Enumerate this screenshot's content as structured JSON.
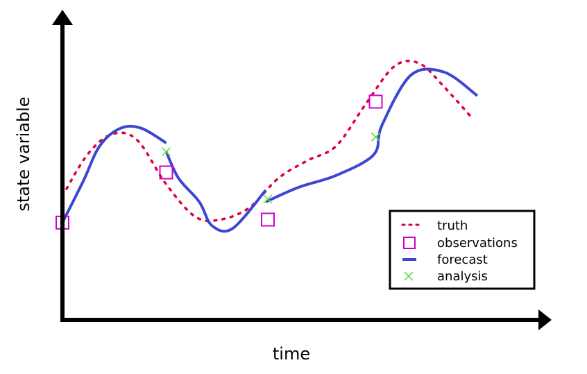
{
  "labels": {
    "y_axis": "state variable",
    "x_axis": "time"
  },
  "legend": {
    "position": "bottom-right",
    "entries": [
      {
        "key": "truth",
        "label": "truth"
      },
      {
        "key": "observations",
        "label": "observations"
      },
      {
        "key": "forecast",
        "label": "forecast"
      },
      {
        "key": "analysis",
        "label": "analysis"
      }
    ]
  },
  "colors": {
    "truth": "#e0003c",
    "observations": "#cc00cc",
    "forecast": "#3c46d2",
    "analysis": "#66dd44",
    "axes": "#000000"
  },
  "chart_data": {
    "type": "line",
    "xlim": [
      0,
      10
    ],
    "ylim": [
      0,
      10
    ],
    "axes_ticks": false,
    "series": [
      {
        "key": "truth",
        "style": "dotted",
        "points": [
          [
            0,
            4.2
          ],
          [
            0.6,
            5.6
          ],
          [
            1.2,
            6.3
          ],
          [
            1.8,
            6.1
          ],
          [
            2.5,
            4.6
          ],
          [
            3.2,
            3.5
          ],
          [
            3.8,
            3.4
          ],
          [
            4.5,
            3.8
          ],
          [
            5.2,
            4.8
          ],
          [
            5.9,
            5.4
          ],
          [
            6.6,
            5.9
          ],
          [
            7.3,
            7.3
          ],
          [
            8,
            8.6
          ],
          [
            8.6,
            8.7
          ],
          [
            9.2,
            7.9
          ],
          [
            9.9,
            6.8
          ]
        ]
      },
      {
        "key": "forecast",
        "style": "solid",
        "points": [
          [
            0,
            3.3
          ],
          [
            0.5,
            4.7
          ],
          [
            0.9,
            5.9
          ],
          [
            1.4,
            6.5
          ],
          [
            1.9,
            6.5
          ],
          [
            2.5,
            6.0
          ]
        ]
      },
      {
        "key": "forecast",
        "style": "solid",
        "points": [
          [
            2.5,
            5.7
          ],
          [
            2.8,
            4.8
          ],
          [
            3.3,
            4.0
          ],
          [
            3.6,
            3.2
          ],
          [
            4.1,
            3.1
          ],
          [
            4.9,
            4.4
          ]
        ]
      },
      {
        "key": "forecast",
        "style": "solid",
        "points": [
          [
            4.9,
            4.0
          ],
          [
            5.7,
            4.5
          ],
          [
            6.6,
            4.9
          ],
          [
            7.5,
            5.6
          ],
          [
            7.7,
            6.6
          ],
          [
            8.4,
            8.3
          ],
          [
            9.2,
            8.4
          ],
          [
            10,
            7.6
          ]
        ]
      }
    ],
    "observations": [
      [
        0,
        3.3
      ],
      [
        2.5,
        5.0
      ],
      [
        4.95,
        3.4
      ],
      [
        7.55,
        7.4
      ]
    ],
    "analysis": [
      [
        2.5,
        5.7
      ],
      [
        4.95,
        4.1
      ],
      [
        7.55,
        6.2
      ]
    ]
  }
}
